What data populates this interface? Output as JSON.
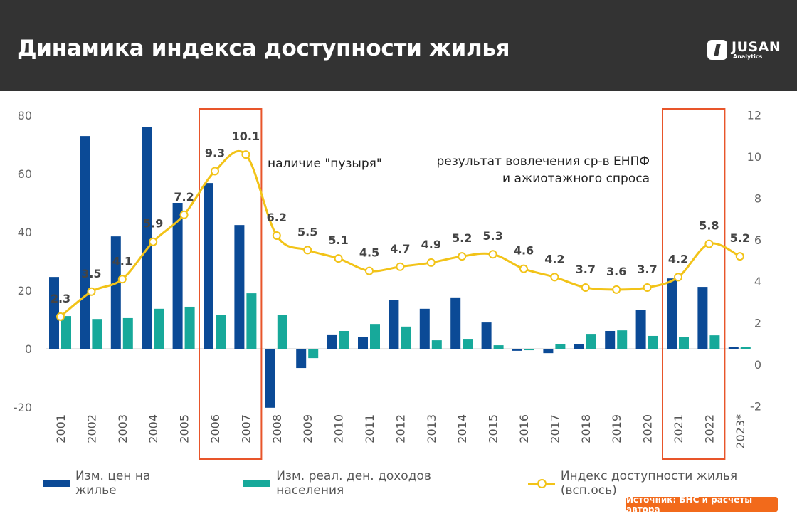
{
  "header": {
    "title": "Динамика индекса доступности жилья",
    "logo_name": "JUSAN",
    "logo_sub": "Analytics"
  },
  "source": "Источник: БНС и расчеты автора",
  "colors": {
    "price": "#0b4a96",
    "income": "#17a99a",
    "index": "#f2c318",
    "highlight": "#e8552a",
    "header_bg": "#333333"
  },
  "chart_data": {
    "type": "bar",
    "title": "Динамика индекса доступности жилья",
    "categories": [
      "2001",
      "2002",
      "2003",
      "2004",
      "2005",
      "2006",
      "2007",
      "2008",
      "2009",
      "2010",
      "2011",
      "2012",
      "2013",
      "2014",
      "2015",
      "2016",
      "2017",
      "2018",
      "2019",
      "2020",
      "2021",
      "2022",
      "2023*"
    ],
    "ylim": [
      -20,
      80
    ],
    "yticks": [
      "-20",
      "0",
      "20",
      "40",
      "60",
      "80"
    ],
    "y2lim": [
      -2,
      12
    ],
    "y2ticks": [
      "-2",
      "0",
      "2",
      "4",
      "6",
      "8",
      "10",
      "12"
    ],
    "series": [
      {
        "name": "Изм. цен на жилье",
        "type": "bar",
        "axis": "left",
        "values": [
          24.6,
          72.9,
          38.5,
          75.9,
          50,
          56.8,
          42.4,
          -20.2,
          -6.6,
          4.9,
          4.1,
          16.6,
          13.7,
          17.6,
          9,
          -0.7,
          -1.5,
          1.7,
          6.1,
          13.2,
          24.1,
          21.2,
          0.7
        ]
      },
      {
        "name": "Изм. реал. ден. доходов населения",
        "type": "bar",
        "axis": "left",
        "values": [
          11.2,
          10.2,
          10.5,
          13.7,
          14.4,
          11.5,
          19,
          11.5,
          -3.2,
          6.1,
          8.5,
          7.6,
          2.9,
          3.4,
          1.2,
          -0.5,
          1.7,
          5.1,
          6.3,
          4.4,
          3.9,
          4.6,
          0.5
        ]
      },
      {
        "name": "Индекс доступности жилья (всп.ось)",
        "type": "line",
        "axis": "right",
        "values": [
          2.3,
          3.5,
          4.1,
          5.9,
          7.2,
          9.3,
          10.1,
          6.2,
          5.5,
          5.1,
          4.5,
          4.7,
          4.9,
          5.2,
          5.3,
          4.6,
          4.2,
          3.7,
          3.6,
          3.7,
          4.2,
          5.8,
          5.2
        ],
        "labels": [
          "2.3",
          "3.5",
          "4.1",
          "5.9",
          "7.2",
          "9.3",
          "10.1",
          "6.2",
          "5.5",
          "5.1",
          "4.5",
          "4.7",
          "4.9",
          "5.2",
          "5.3",
          "4.6",
          "4.2",
          "3.7",
          "3.6",
          "3.7",
          "4.2",
          "5.8",
          "5.2"
        ]
      }
    ],
    "highlights": [
      {
        "from": "2006",
        "to": "2007"
      },
      {
        "from": "2021",
        "to": "2022"
      }
    ],
    "annotations": [
      "наличие \"пузыря\"",
      "результат вовлечения ср-в ЕНПФ",
      "и ажиотажного спроса"
    ],
    "legend": "bottom"
  }
}
